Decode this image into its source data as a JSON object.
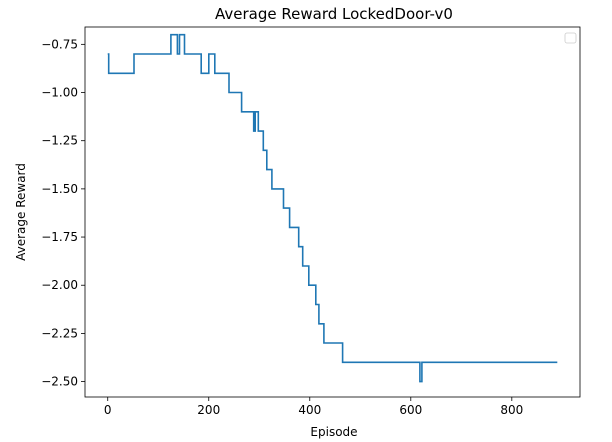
{
  "chart_data": {
    "type": "line",
    "title": "Average Reward LockedDoor-v0",
    "xlabel": "Episode",
    "ylabel": "Average Reward",
    "xlim": [
      -45,
      935
    ],
    "ylim": [
      -2.58,
      -0.66
    ],
    "xticks": [
      0,
      200,
      400,
      600,
      800
    ],
    "xtick_labels": [
      "0",
      "200",
      "400",
      "600",
      "800"
    ],
    "yticks": [
      -0.75,
      -1.0,
      -1.25,
      -1.5,
      -1.75,
      -2.0,
      -2.25,
      -2.5
    ],
    "ytick_labels": [
      "−0.75",
      "−1.00",
      "−1.25",
      "−1.50",
      "−1.75",
      "−2.00",
      "−2.25",
      "−2.50"
    ],
    "grid": false,
    "legend": {
      "location": "top-right",
      "entries": []
    },
    "series": [
      {
        "color": "#1f77b4",
        "step": true,
        "x": [
          0,
          2,
          52,
          125,
          138,
          142,
          146,
          152,
          185,
          200,
          212,
          225,
          240,
          265,
          285,
          289,
          292,
          298,
          308,
          315,
          325,
          348,
          353,
          360,
          378,
          386,
          398,
          405,
          412,
          418,
          428,
          440,
          465,
          618,
          622,
          630,
          890
        ],
        "y": [
          -0.8,
          -0.9,
          -0.8,
          -0.7,
          -0.8,
          -0.7,
          -0.7,
          -0.8,
          -0.9,
          -0.8,
          -0.9,
          -0.9,
          -1.0,
          -1.1,
          -1.1,
          -1.2,
          -1.1,
          -1.2,
          -1.3,
          -1.4,
          -1.5,
          -1.6,
          -1.6,
          -1.7,
          -1.8,
          -1.9,
          -2.0,
          -2.0,
          -2.1,
          -2.2,
          -2.3,
          -2.3,
          -2.4,
          -2.5,
          -2.4,
          -2.4,
          -2.4
        ]
      }
    ]
  }
}
